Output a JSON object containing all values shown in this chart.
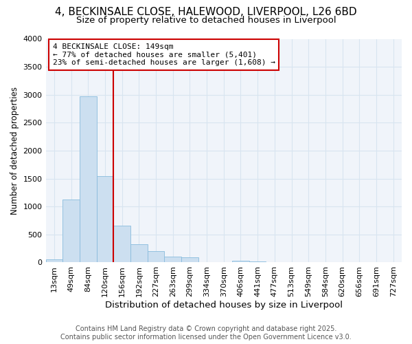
{
  "title_line1": "4, BECKINSALE CLOSE, HALEWOOD, LIVERPOOL, L26 6BD",
  "title_line2": "Size of property relative to detached houses in Liverpool",
  "xlabel": "Distribution of detached houses by size in Liverpool",
  "ylabel": "Number of detached properties",
  "bar_color": "#ccdff0",
  "bar_edge_color": "#88bbdd",
  "categories": [
    "13sqm",
    "49sqm",
    "84sqm",
    "120sqm",
    "156sqm",
    "192sqm",
    "227sqm",
    "263sqm",
    "299sqm",
    "334sqm",
    "370sqm",
    "406sqm",
    "441sqm",
    "477sqm",
    "513sqm",
    "549sqm",
    "584sqm",
    "620sqm",
    "656sqm",
    "691sqm",
    "727sqm"
  ],
  "values": [
    55,
    1130,
    2970,
    1540,
    660,
    330,
    200,
    100,
    90,
    10,
    5,
    30,
    20,
    0,
    0,
    0,
    0,
    0,
    0,
    0,
    0
  ],
  "ylim": [
    0,
    4000
  ],
  "yticks": [
    0,
    500,
    1000,
    1500,
    2000,
    2500,
    3000,
    3500,
    4000
  ],
  "vline_x": 3.5,
  "vline_color": "#cc0000",
  "property_size_label": "4 BECKINSALE CLOSE: 149sqm",
  "annotation_line1": "← 77% of detached houses are smaller (5,401)",
  "annotation_line2": "23% of semi-detached houses are larger (1,608) →",
  "annotation_box_edge_color": "#cc0000",
  "footer_line1": "Contains HM Land Registry data © Crown copyright and database right 2025.",
  "footer_line2": "Contains public sector information licensed under the Open Government Licence v3.0.",
  "background_color": "#ffffff",
  "plot_bg_color": "#f0f4fa",
  "grid_color": "#d8e4f0",
  "title_fontsize": 11,
  "subtitle_fontsize": 9.5,
  "ylabel_fontsize": 8.5,
  "xlabel_fontsize": 9.5,
  "tick_fontsize": 8,
  "footer_fontsize": 7
}
